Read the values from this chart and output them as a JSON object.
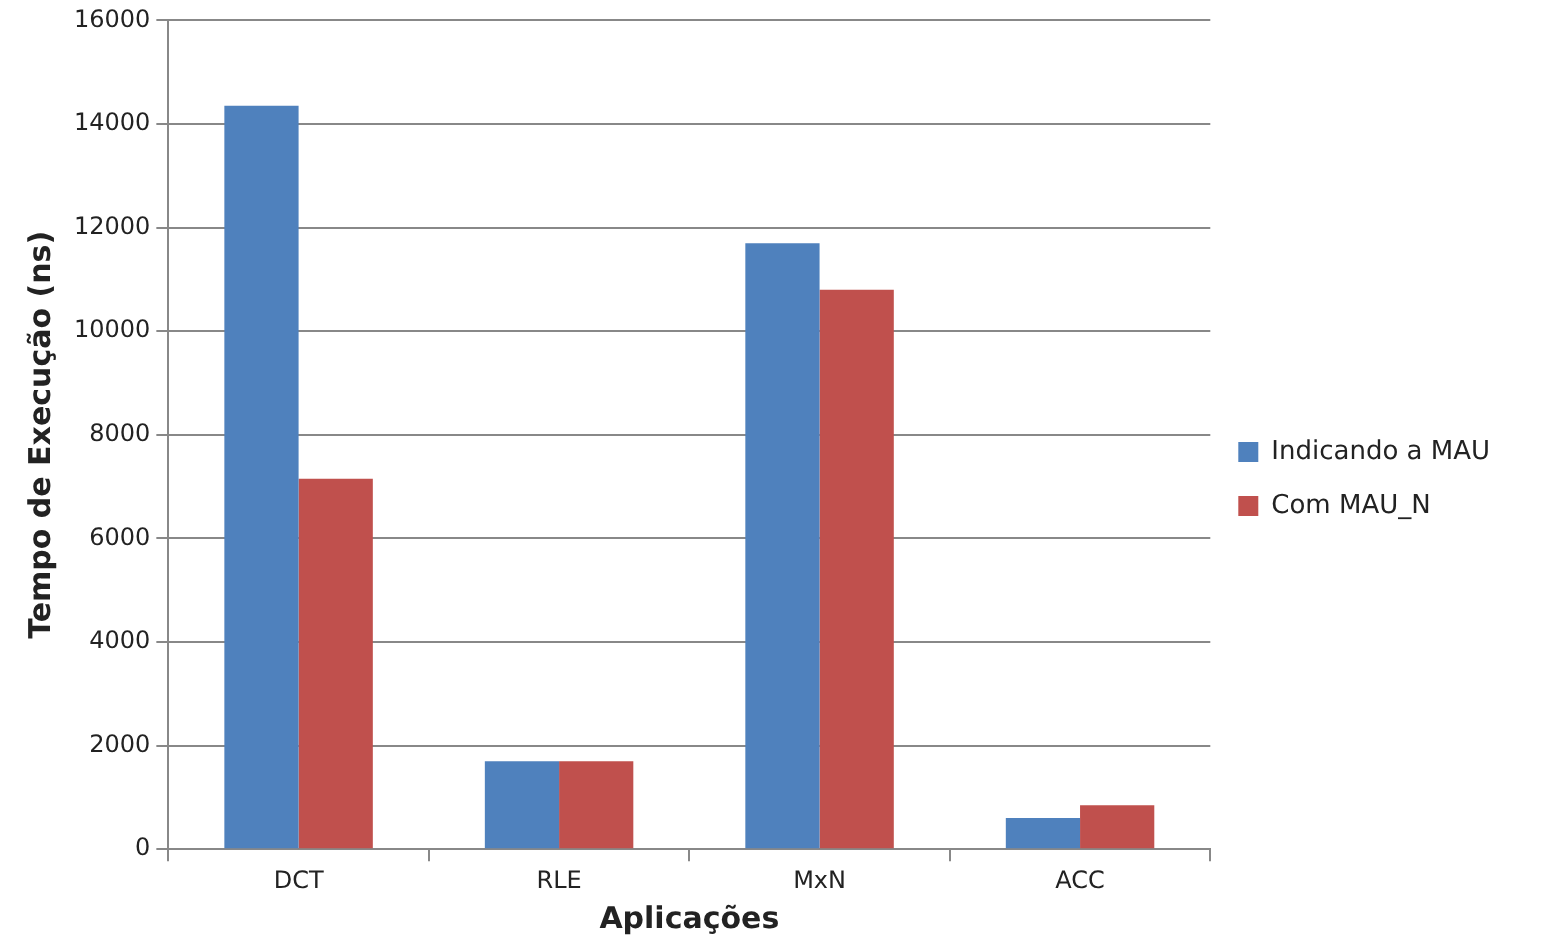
{
  "chart_data": {
    "type": "bar",
    "xlabel": "Aplicações",
    "ylabel": "Tempo de Execução (ns)",
    "categories": [
      "DCT",
      "RLE",
      "MxN",
      "ACC"
    ],
    "series": [
      {
        "name": "Indicando a MAU",
        "color": "#4f81bd",
        "values": [
          14350,
          1700,
          11700,
          600
        ]
      },
      {
        "name": "Com MAU_N",
        "color": "#c0504d",
        "values": [
          7150,
          1700,
          10800,
          850
        ]
      }
    ],
    "ylim": [
      0,
      16000
    ],
    "yticks": [
      0,
      2000,
      4000,
      6000,
      8000,
      10000,
      12000,
      14000,
      16000
    ],
    "grid": "y",
    "legend": "right"
  }
}
